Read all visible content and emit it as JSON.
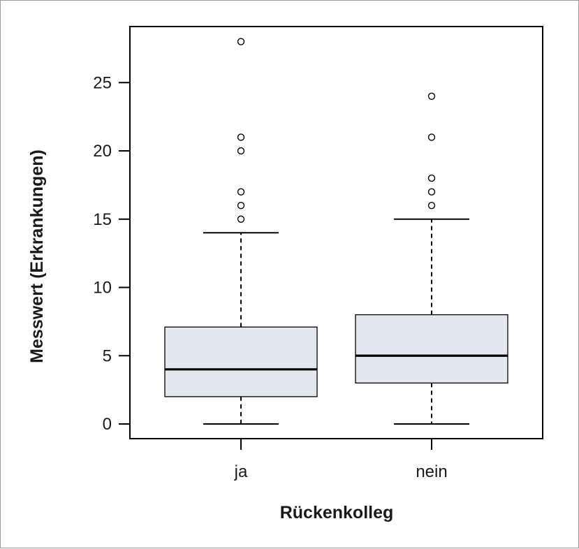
{
  "chart_data": {
    "type": "box",
    "xlabel": "Rückenkolleg",
    "ylabel": "Messwert (Erkrankungen)",
    "ylim": [
      -1,
      29
    ],
    "yticks": [
      0,
      5,
      10,
      15,
      20,
      25
    ],
    "categories": [
      "ja",
      "nein"
    ],
    "boxes": [
      {
        "category": "ja",
        "whisker_low": 0,
        "q1": 2,
        "median": 4,
        "q3": 7.1,
        "whisker_high": 14,
        "outliers": [
          15,
          16,
          17,
          20,
          21,
          28
        ]
      },
      {
        "category": "nein",
        "whisker_low": 0,
        "q1": 3,
        "median": 5,
        "q3": 8,
        "whisker_high": 15,
        "outliers": [
          16,
          17,
          18,
          21,
          24
        ]
      }
    ],
    "box_fill": "#e3e7ef",
    "line_color": "#000000",
    "grid": false,
    "legend": "none"
  }
}
